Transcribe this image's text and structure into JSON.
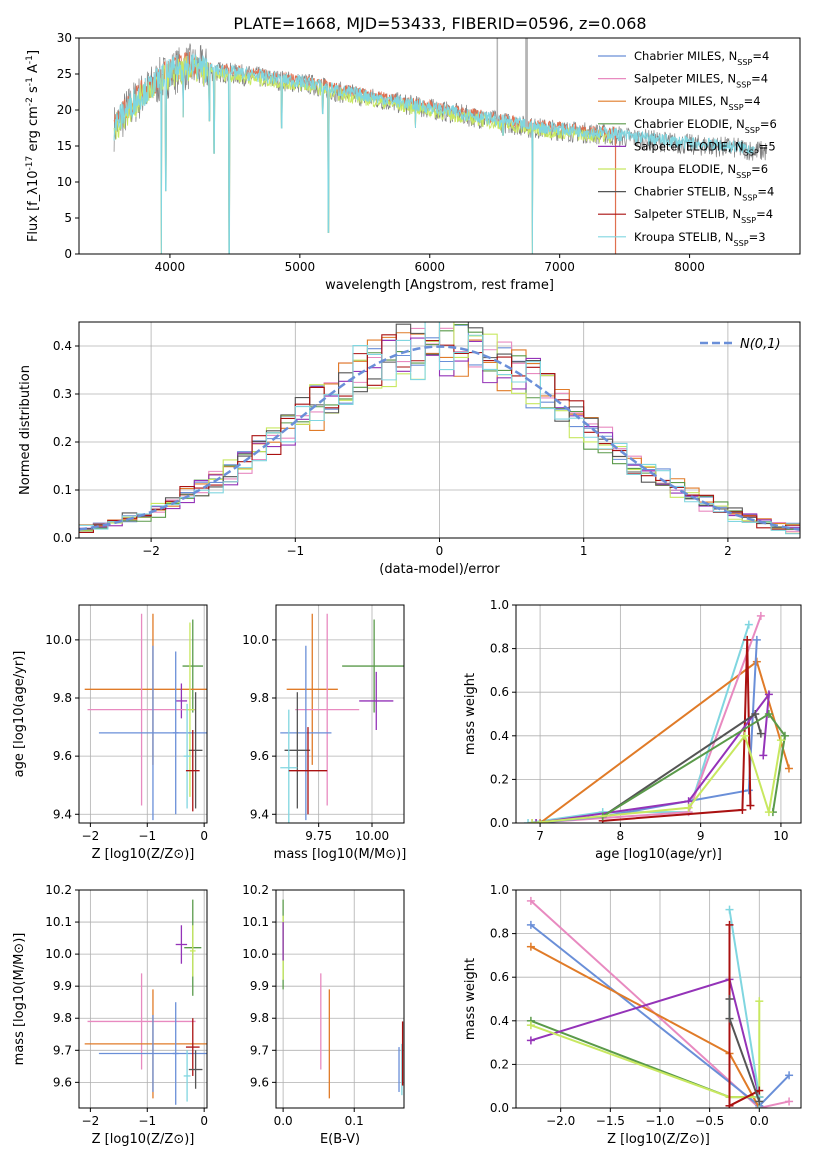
{
  "figure": {
    "title": "PLATE=1668, MJD=53433, FIBERID=0596, z=0.068"
  },
  "colors": {
    "blue": "#6a8fd8",
    "pink": "#e88ac0",
    "orange": "#e07b28",
    "green": "#5a9a4a",
    "purple": "#9433b8",
    "lime": "#c8e860",
    "darkgray": "#555555",
    "darkred": "#aa1111",
    "cyan": "#80d6e0",
    "gray": "#808080",
    "silver": "#b5b5b5",
    "salmon": "#e07050"
  },
  "chart_data": [
    {
      "id": "spectrum",
      "type": "line",
      "xlabel": "wavelength [Angstrom, rest frame]",
      "ylabel": "Flux [f_λ10^-17 erg cm^-2 s^-1 A^-1]",
      "xlim": [
        3300,
        8850
      ],
      "ylim": [
        0,
        30
      ],
      "xticks": [
        4000,
        5000,
        6000,
        7000,
        8000
      ],
      "yticks": [
        0,
        5,
        10,
        15,
        20,
        25,
        30
      ],
      "grid": false,
      "legend_position": "top-right",
      "continuum": {
        "x": [
          3570,
          3650,
          3750,
          3850,
          3950,
          4050,
          4150,
          4300,
          4500,
          4700,
          4900,
          5100,
          5300,
          5600,
          5900,
          6200,
          6500,
          6800,
          7100,
          7400,
          7700,
          8000,
          8300,
          8600
        ],
        "y": [
          17.5,
          19.5,
          21.5,
          23.0,
          24.5,
          25.5,
          26.0,
          25.5,
          25.0,
          24.5,
          24.0,
          23.5,
          22.5,
          21.5,
          20.5,
          19.5,
          18.5,
          17.5,
          17.0,
          16.5,
          15.8,
          15.2,
          14.8,
          14.2
        ]
      },
      "absorption_lines": [
        {
          "x": 3934,
          "y": 0
        },
        {
          "x": 3969,
          "y": 8.8
        },
        {
          "x": 4102,
          "y": 19.0
        },
        {
          "x": 4305,
          "y": 18.5
        },
        {
          "x": 4340,
          "y": 14.0
        },
        {
          "x": 4455,
          "y": 0
        },
        {
          "x": 4861,
          "y": 17.5
        },
        {
          "x": 5175,
          "y": 19.5
        },
        {
          "x": 5220,
          "y": 3.0
        },
        {
          "x": 5890,
          "y": 17.5
        },
        {
          "x": 6563,
          "y": 16.5
        },
        {
          "x": 6790,
          "y": 0
        }
      ],
      "emission_spikes": [
        {
          "x": 6520,
          "y": 30
        },
        {
          "x": 6740,
          "y": 30
        },
        {
          "x": 6750,
          "y": 30
        }
      ],
      "red_cutoff_x": 7430,
      "legend": [
        {
          "label": "Chabrier MILES, N_SSP=4",
          "color": "blue"
        },
        {
          "label": "Salpeter MILES, N_SSP=4",
          "color": "pink"
        },
        {
          "label": "Kroupa MILES, N_SSP=4",
          "color": "orange"
        },
        {
          "label": "Chabrier ELODIE, N_SSP=6",
          "color": "green"
        },
        {
          "label": "Salpeter ELODIE, N_SSP=5",
          "color": "purple"
        },
        {
          "label": "Kroupa ELODIE, N_SSP=6",
          "color": "lime"
        },
        {
          "label": "Chabrier STELIB, N_SSP=4",
          "color": "darkgray"
        },
        {
          "label": "Salpeter STELIB, N_SSP=4",
          "color": "darkred"
        },
        {
          "label": "Kroupa STELIB, N_SSP=3",
          "color": "cyan"
        }
      ]
    },
    {
      "id": "residuals",
      "type": "line",
      "xlabel": "(data-model)/error",
      "ylabel": "Normed distribution",
      "xlim": [
        -2.5,
        2.5
      ],
      "ylim": [
        0,
        0.45
      ],
      "xticks": [
        -2,
        -1,
        0,
        1,
        2
      ],
      "yticks": [
        0.0,
        0.1,
        0.2,
        0.3,
        0.4
      ],
      "grid": true,
      "legend_position": "top-right",
      "legend_label": "N(0,1)",
      "bin_width": 0.1,
      "series_colors": [
        "blue",
        "pink",
        "orange",
        "green",
        "purple",
        "lime",
        "darkgray",
        "darkred",
        "cyan"
      ]
    },
    {
      "id": "age_vs_z",
      "type": "scatter",
      "xlabel": "Z [log10(Z/Z⊙)]",
      "ylabel": "age [log10(age/yr)]",
      "xlim": [
        -2.2,
        0.05
      ],
      "ylim": [
        9.37,
        10.12
      ],
      "xticks": [
        -2,
        -1,
        0
      ],
      "yticks": [
        9.4,
        9.6,
        9.8,
        10.0
      ],
      "grid": true,
      "points": [
        {
          "x": -0.2,
          "y": 9.91,
          "xerr": 0.18,
          "yerr": 0.16,
          "color": "green"
        },
        {
          "x": -0.9,
          "y": 9.83,
          "xerr": 1.2,
          "yerr": 0.26,
          "color": "orange"
        },
        {
          "x": -0.4,
          "y": 9.79,
          "xerr": 0.1,
          "yerr": 0.06,
          "color": "purple"
        },
        {
          "x": -1.1,
          "y": 9.76,
          "xerr": 0.95,
          "yerr": 0.33,
          "color": "pink"
        },
        {
          "x": -0.25,
          "y": 9.76,
          "xerr": 0.08,
          "yerr": 0.3,
          "color": "lime"
        },
        {
          "x": -0.9,
          "y": 9.68,
          "xerr": 0.95,
          "yerr": 0.3,
          "color": "blue"
        },
        {
          "x": -0.5,
          "y": 9.68,
          "xerr": 0.05,
          "yerr": 0.28,
          "color": "blue"
        },
        {
          "x": -0.15,
          "y": 9.62,
          "xerr": 0.12,
          "yerr": 0.2,
          "color": "darkgray"
        },
        {
          "x": -0.3,
          "y": 9.6,
          "xerr": 0.06,
          "yerr": 0.18,
          "color": "cyan"
        },
        {
          "x": -0.2,
          "y": 9.55,
          "xerr": 0.12,
          "yerr": 0.14,
          "color": "darkred"
        }
      ]
    },
    {
      "id": "age_vs_mass",
      "type": "scatter",
      "xlabel": "mass [log10(M/M⊙)]",
      "ylabel": "",
      "xlim": [
        9.55,
        10.15
      ],
      "ylim": [
        9.37,
        10.12
      ],
      "xticks": [
        9.75,
        10.0
      ],
      "yticks": [
        9.4,
        9.6,
        9.8,
        10.0
      ],
      "grid": true,
      "points": [
        {
          "x": 10.01,
          "y": 9.91,
          "xerr": 0.15,
          "yerr": 0.16,
          "color": "green"
        },
        {
          "x": 9.72,
          "y": 9.83,
          "xerr": 0.12,
          "yerr": 0.26,
          "color": "orange"
        },
        {
          "x": 10.02,
          "y": 9.79,
          "xerr": 0.08,
          "yerr": 0.1,
          "color": "purple"
        },
        {
          "x": 9.79,
          "y": 9.76,
          "xerr": 0.15,
          "yerr": 0.33,
          "color": "pink"
        },
        {
          "x": 9.69,
          "y": 9.68,
          "xerr": 0.12,
          "yerr": 0.3,
          "color": "blue"
        },
        {
          "x": 9.65,
          "y": 9.62,
          "xerr": 0.06,
          "yerr": 0.2,
          "color": "darkgray"
        },
        {
          "x": 9.61,
          "y": 9.56,
          "xerr": 0.04,
          "yerr": 0.2,
          "color": "cyan"
        },
        {
          "x": 9.7,
          "y": 9.55,
          "xerr": 0.09,
          "yerr": 0.15,
          "color": "darkred"
        }
      ]
    },
    {
      "id": "massweight_vs_age",
      "type": "line",
      "xlabel": "age [log10(age/yr)]",
      "ylabel": "mass weight",
      "xlim": [
        6.7,
        10.25
      ],
      "ylim": [
        0,
        1
      ],
      "xticks": [
        7,
        8,
        9,
        10
      ],
      "yticks": [
        0.0,
        0.2,
        0.4,
        0.6,
        0.8,
        1.0
      ],
      "grid": true,
      "series": [
        {
          "color": "cyan",
          "x": [
            6.85,
            7.78,
            8.85,
            9.6
          ],
          "y": [
            0.0,
            0.05,
            0.05,
            0.91
          ]
        },
        {
          "color": "orange",
          "x": [
            7.0,
            9.7,
            10.1
          ],
          "y": [
            0.0,
            0.74,
            0.25
          ]
        },
        {
          "color": "pink",
          "x": [
            6.9,
            8.85,
            9.75
          ],
          "y": [
            0.0,
            0.05,
            0.95
          ]
        },
        {
          "color": "blue",
          "x": [
            6.95,
            7.78,
            9.6,
            9.7
          ],
          "y": [
            0.0,
            0.03,
            0.15,
            0.84
          ]
        },
        {
          "color": "darkred",
          "x": [
            7.78,
            9.52,
            9.58,
            9.62
          ],
          "y": [
            0.01,
            0.06,
            0.84,
            0.08
          ]
        },
        {
          "color": "purple",
          "x": [
            6.95,
            8.85,
            9.85,
            9.78
          ],
          "y": [
            0.0,
            0.1,
            0.59,
            0.31
          ]
        },
        {
          "color": "darkgray",
          "x": [
            7.78,
            9.68,
            9.75
          ],
          "y": [
            0.03,
            0.5,
            0.41
          ]
        },
        {
          "color": "green",
          "x": [
            7.78,
            9.85,
            10.05,
            9.9
          ],
          "y": [
            0.03,
            0.5,
            0.4,
            0.05
          ]
        },
        {
          "color": "lime",
          "x": [
            6.9,
            8.85,
            9.55,
            9.85,
            10.0
          ],
          "y": [
            0.0,
            0.07,
            0.4,
            0.05,
            0.38
          ]
        }
      ]
    },
    {
      "id": "mass_vs_z",
      "type": "scatter",
      "xlabel": "Z [log10(Z/Z⊙)]",
      "ylabel": "mass [log10(M/M⊙)]",
      "xlim": [
        -2.2,
        0.05
      ],
      "ylim": [
        9.52,
        10.2
      ],
      "xticks": [
        -2,
        -1,
        0
      ],
      "yticks": [
        9.6,
        9.7,
        9.8,
        9.9,
        10.0,
        10.1,
        10.2
      ],
      "grid": true,
      "points": [
        {
          "x": -0.2,
          "y": 10.02,
          "xerr": 0.15,
          "yerr": 0.15,
          "color": "green"
        },
        {
          "x": -0.4,
          "y": 10.03,
          "xerr": 0.1,
          "yerr": 0.06,
          "color": "purple"
        },
        {
          "x": -0.2,
          "y": 10.01,
          "xerr": 0.05,
          "yerr": 0.08,
          "color": "lime"
        },
        {
          "x": -1.1,
          "y": 9.79,
          "xerr": 0.95,
          "yerr": 0.15,
          "color": "pink"
        },
        {
          "x": -0.9,
          "y": 9.72,
          "xerr": 1.2,
          "yerr": 0.17,
          "color": "orange"
        },
        {
          "x": -0.9,
          "y": 9.69,
          "xerr": 0.95,
          "yerr": 0.12,
          "color": "blue"
        },
        {
          "x": -0.5,
          "y": 9.69,
          "xerr": 0.05,
          "yerr": 0.16,
          "color": "blue"
        },
        {
          "x": -0.2,
          "y": 9.71,
          "xerr": 0.12,
          "yerr": 0.09,
          "color": "darkred"
        },
        {
          "x": -0.15,
          "y": 9.64,
          "xerr": 0.12,
          "yerr": 0.06,
          "color": "darkgray"
        },
        {
          "x": -0.3,
          "y": 9.62,
          "xerr": 0.06,
          "yerr": 0.08,
          "color": "cyan"
        }
      ]
    },
    {
      "id": "mass_vs_ebv",
      "type": "scatter",
      "xlabel": "E(B-V)",
      "ylabel": "",
      "xlim": [
        -0.01,
        0.17
      ],
      "ylim": [
        9.52,
        10.2
      ],
      "xticks": [
        0.0,
        0.1
      ],
      "yticks": [
        9.6,
        9.7,
        9.8,
        9.9,
        10.0,
        10.1,
        10.2
      ],
      "grid": true,
      "points": [
        {
          "x": 0.0,
          "y": 10.03,
          "xerr": 0,
          "yerr": 0.14,
          "color": "green"
        },
        {
          "x": 0.0,
          "y": 10.02,
          "xerr": 0,
          "yerr": 0.1,
          "color": "lime"
        },
        {
          "x": 0.0,
          "y": 10.04,
          "xerr": 0,
          "yerr": 0.06,
          "color": "purple"
        },
        {
          "x": 0.053,
          "y": 9.79,
          "xerr": 0,
          "yerr": 0.15,
          "color": "pink"
        },
        {
          "x": 0.065,
          "y": 9.72,
          "xerr": 0,
          "yerr": 0.17,
          "color": "orange"
        },
        {
          "x": 0.167,
          "y": 9.64,
          "xerr": 0,
          "yerr": 0.08,
          "color": "cyan"
        },
        {
          "x": 0.163,
          "y": 9.64,
          "xerr": 0,
          "yerr": 0.07,
          "color": "blue"
        },
        {
          "x": 0.168,
          "y": 9.69,
          "xerr": 0,
          "yerr": 0.1,
          "color": "darkred"
        }
      ]
    },
    {
      "id": "massweight_vs_z",
      "type": "line",
      "xlabel": "Z [log10(Z/Z⊙)]",
      "ylabel": "mass weight",
      "xlim": [
        -2.45,
        0.42
      ],
      "ylim": [
        0,
        1
      ],
      "xticks": [
        -2.0,
        -1.5,
        -1.0,
        -0.5,
        0.0
      ],
      "yticks": [
        0.0,
        0.2,
        0.4,
        0.6,
        0.8,
        1.0
      ],
      "grid": true,
      "series": [
        {
          "color": "pink",
          "x": [
            -2.3,
            0.0,
            0.3
          ],
          "y": [
            0.95,
            0.0,
            0.03
          ]
        },
        {
          "color": "blue",
          "x": [
            -2.3,
            0.0,
            0.3
          ],
          "y": [
            0.84,
            0.01,
            0.15
          ]
        },
        {
          "color": "orange",
          "x": [
            -2.3,
            -0.3,
            0.0
          ],
          "y": [
            0.74,
            0.25,
            0.0
          ]
        },
        {
          "color": "green",
          "x": [
            -2.3,
            -0.3,
            0.0
          ],
          "y": [
            0.4,
            0.05,
            0.05
          ]
        },
        {
          "color": "purple",
          "x": [
            -2.3,
            -0.3,
            0.0
          ],
          "y": [
            0.31,
            0.59,
            0.05
          ]
        },
        {
          "color": "lime",
          "x": [
            -2.3,
            -0.3,
            0.0,
            0.0
          ],
          "y": [
            0.38,
            0.05,
            0.05,
            0.49
          ]
        },
        {
          "color": "cyan",
          "x": [
            -0.3,
            0.0,
            0.0
          ],
          "y": [
            0.91,
            0.05,
            0.0
          ]
        },
        {
          "color": "darkred",
          "x": [
            -0.3,
            -0.3,
            0.0
          ],
          "y": [
            0.84,
            0.01,
            0.08
          ]
        },
        {
          "color": "darkgray",
          "x": [
            -0.3,
            -0.3,
            0.0
          ],
          "y": [
            0.5,
            0.41,
            0.03
          ]
        }
      ]
    }
  ]
}
